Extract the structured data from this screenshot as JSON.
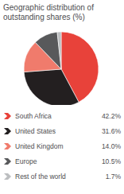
{
  "chart_data": {
    "type": "pie",
    "title": "Geographic distribution of outstanding shares (%)",
    "categories": [
      "South Africa",
      "United States",
      "United Kingdom",
      "Europe",
      "Rest of the world"
    ],
    "values": [
      42.2,
      31.6,
      14.0,
      10.5,
      1.7
    ],
    "value_labels": [
      "42.2%",
      "31.6%",
      "14.0%",
      "10.5%",
      "1.7%"
    ],
    "colors": [
      "#e8423a",
      "#231f20",
      "#f07b6c",
      "#58595b",
      "#bcbec0"
    ],
    "legend": "bottom"
  }
}
